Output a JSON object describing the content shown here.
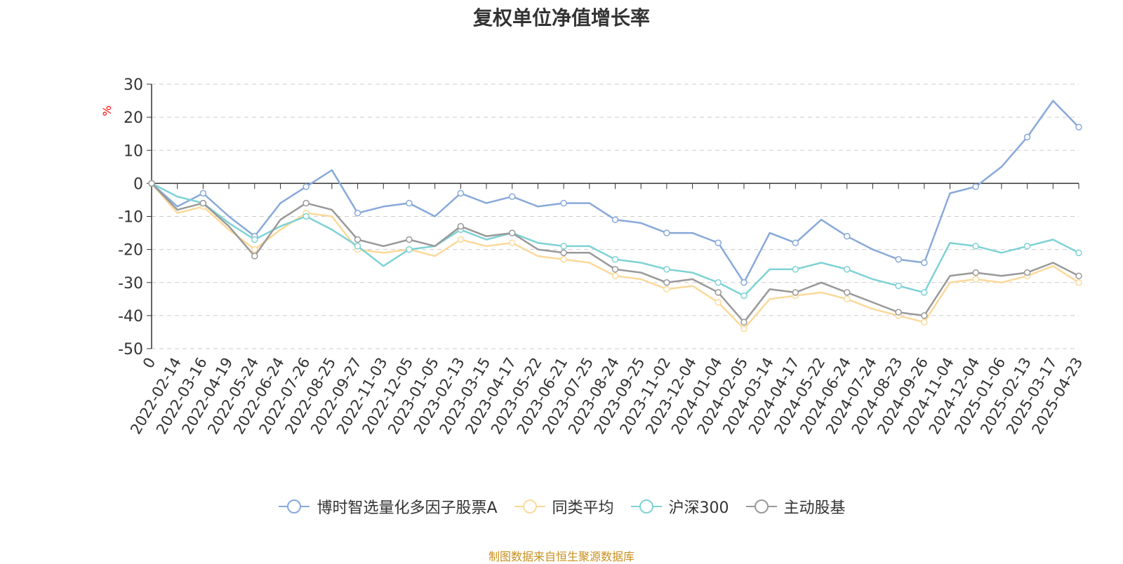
{
  "chart_data": {
    "type": "line",
    "title": "复权单位净值增长率",
    "ylabel": "%",
    "ylim": [
      -50,
      30
    ],
    "yticks": [
      30,
      20,
      10,
      0,
      -10,
      -20,
      -30,
      -40,
      -50
    ],
    "categories": [
      "0",
      "2022-02-14",
      "2022-03-16",
      "2022-04-19",
      "2022-05-24",
      "2022-06-24",
      "2022-07-26",
      "2022-08-25",
      "2022-09-27",
      "2022-11-03",
      "2022-12-05",
      "2023-01-05",
      "2023-02-13",
      "2023-03-15",
      "2023-04-17",
      "2023-05-22",
      "2023-06-21",
      "2023-07-25",
      "2023-08-24",
      "2023-09-25",
      "2023-11-02",
      "2023-12-04",
      "2024-01-04",
      "2024-02-05",
      "2024-03-14",
      "2024-04-17",
      "2024-05-22",
      "2024-06-24",
      "2024-07-24",
      "2024-08-23",
      "2024-09-26",
      "2024-11-04",
      "2024-12-04",
      "2025-01-06",
      "2025-02-13",
      "2025-03-17",
      "2025-04-23"
    ],
    "grid": true,
    "legend_position": "bottom",
    "series": [
      {
        "name": "博时智选量化多因子股票A",
        "color": "#88a9d9",
        "values": [
          0,
          -7,
          -3,
          -10,
          -16,
          -6,
          -1,
          4,
          -9,
          -7,
          -6,
          -10,
          -3,
          -6,
          -4,
          -7,
          -6,
          -6,
          -11,
          -12,
          -15,
          -15,
          -18,
          -30,
          -15,
          -18,
          -11,
          -16,
          -20,
          -23,
          -24,
          -3,
          -1,
          5,
          14,
          25,
          17
        ]
      },
      {
        "name": "同类平均",
        "color": "#fbd99a",
        "values": [
          0,
          -9,
          -7,
          -14,
          -20,
          -14,
          -9,
          -10,
          -20,
          -21,
          -20,
          -22,
          -17,
          -19,
          -18,
          -22,
          -23,
          -24,
          -28,
          -29,
          -32,
          -31,
          -36,
          -44,
          -35,
          -34,
          -33,
          -35,
          -38,
          -40,
          -42,
          -30,
          -29,
          -30,
          -28,
          -25,
          -30
        ]
      },
      {
        "name": "沪深300",
        "color": "#7fd2d5",
        "values": [
          0,
          -4,
          -6,
          -12,
          -17,
          -13,
          -10,
          -14,
          -19,
          -25,
          -20,
          -19,
          -14,
          -17,
          -15,
          -18,
          -19,
          -19,
          -23,
          -24,
          -26,
          -27,
          -30,
          -34,
          -26,
          -26,
          -24,
          -26,
          -29,
          -31,
          -33,
          -18,
          -19,
          -21,
          -19,
          -17,
          -21
        ]
      },
      {
        "name": "主动股基",
        "color": "#999999",
        "values": [
          0,
          -8,
          -6,
          -13,
          -22,
          -11,
          -6,
          -8,
          -17,
          -19,
          -17,
          -19,
          -13,
          -16,
          -15,
          -20,
          -21,
          -21,
          -26,
          -27,
          -30,
          -29,
          -33,
          -42,
          -32,
          -33,
          -30,
          -33,
          -36,
          -39,
          -40,
          -28,
          -27,
          -28,
          -27,
          -24,
          -28
        ]
      }
    ]
  },
  "footer": {
    "source": "制图数据来自恒生聚源数据库"
  }
}
